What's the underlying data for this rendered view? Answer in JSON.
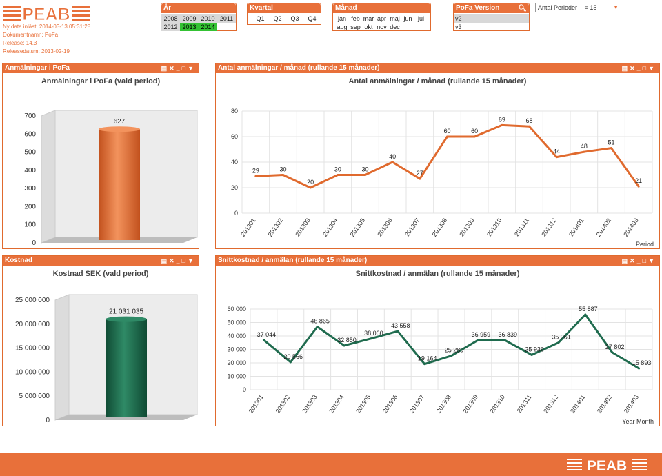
{
  "header": {
    "logo_text": "PEAB",
    "meta_lines": [
      "Ny data inläst: 2014-03-13 05:31:28",
      "Dokumentnamn: PoFa",
      "Release:  14.3",
      "Releasedatum: 2013-02-19"
    ]
  },
  "colors": {
    "accent": "#e8703a",
    "selected": "#34c234",
    "line_orange": "#e06a2e",
    "line_green": "#1f6b4e"
  },
  "filters": {
    "year": {
      "title": "År",
      "row1": [
        "2008",
        "2009",
        "2010",
        "2011"
      ],
      "row2": [
        "2012",
        "2013",
        "2014"
      ],
      "selected": [
        "2013",
        "2014"
      ]
    },
    "quarter": {
      "title": "Kvartal",
      "items": [
        "Q1",
        "Q2",
        "Q3",
        "Q4"
      ]
    },
    "month": {
      "title": "Månad",
      "row1": [
        "jan",
        "feb",
        "mar",
        "apr",
        "maj",
        "jun",
        "jul"
      ],
      "row2": [
        "aug",
        "sep",
        "okt",
        "nov",
        "dec"
      ]
    },
    "version": {
      "title": "PoFa Version",
      "items": [
        "v2",
        "v3"
      ]
    },
    "periods": {
      "label": "Antal Perioder",
      "value": "= 15"
    }
  },
  "panels": {
    "p1": {
      "caption": "Anmälningar i PoFa"
    },
    "p2": {
      "caption": "Antal anmälningar / månad (rullande 15 månader)"
    },
    "p3": {
      "caption": "Kostnad"
    },
    "p4": {
      "caption": "Snittkostnad / anmälan (rullande 15 månader)"
    }
  },
  "chart_data": [
    {
      "type": "bar",
      "title": "Anmälningar i PoFa (vald period)",
      "categories": [
        ""
      ],
      "values": [
        627
      ],
      "data_labels": [
        "627"
      ],
      "yticks": [
        "0",
        "100",
        "200",
        "300",
        "400",
        "500",
        "600",
        "700"
      ],
      "ylim": [
        0,
        700
      ],
      "color": "#e8703a"
    },
    {
      "type": "line",
      "title": "Antal anmälningar / månad (rullande 15 månader)",
      "xlabel": "Period",
      "x": [
        "201301",
        "201302",
        "201303",
        "201304",
        "201305",
        "201306",
        "201307",
        "201308",
        "201309",
        "201310",
        "201311",
        "201312",
        "201401",
        "201402",
        "201403"
      ],
      "values": [
        29,
        30,
        20,
        30,
        30,
        40,
        27,
        60,
        60,
        69,
        68,
        44,
        48,
        51,
        21
      ],
      "yticks": [
        "0",
        "20",
        "40",
        "60",
        "80"
      ],
      "ylim": [
        0,
        80
      ],
      "color": "#e06a2e"
    },
    {
      "type": "bar",
      "title": "Kostnad SEK (vald period)",
      "categories": [
        ""
      ],
      "values": [
        21031035
      ],
      "data_labels": [
        "21 031 035"
      ],
      "yticks": [
        "0",
        "5 000 000",
        "10 000 000",
        "15 000 000",
        "20 000 000",
        "25 000 000"
      ],
      "ylim": [
        0,
        25000000
      ],
      "color": "#1f6b4e"
    },
    {
      "type": "line",
      "title": "Snittkostnad / anmälan (rullande 15 månader)",
      "xlabel": "Year Month",
      "x": [
        "201301",
        "201302",
        "201303",
        "201304",
        "201305",
        "201306",
        "201307",
        "201308",
        "201309",
        "201310",
        "201311",
        "201312",
        "201401",
        "201402",
        "201403"
      ],
      "values": [
        37044,
        20566,
        46865,
        32850,
        38060,
        43558,
        19164,
        25289,
        36959,
        36839,
        25936,
        35061,
        55887,
        27802,
        15893
      ],
      "data_labels": [
        "37 044",
        "20 566",
        "46 865",
        "32 850",
        "38 060",
        "43 558",
        "19 164",
        "25 289",
        "36 959",
        "36 839",
        "25 936",
        "35 061",
        "55 887",
        "27 802",
        "15 893"
      ],
      "yticks": [
        "0",
        "10 000",
        "20 000",
        "30 000",
        "40 000",
        "50 000",
        "60 000"
      ],
      "ylim": [
        0,
        60000
      ],
      "color": "#1f6b4e"
    }
  ]
}
